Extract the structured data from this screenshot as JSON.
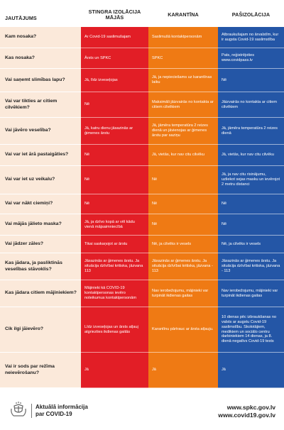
{
  "headers": {
    "q": "JAUTĀJUMS",
    "c1": "STINGRA IZOLĀCIJA MĀJĀS",
    "c2": "KARANTĪNA",
    "c3": "PAŠIZOLĀCIJA"
  },
  "rows": [
    {
      "q": "Kam nosaka?",
      "r": "Ar Covid-19 saslimušajam",
      "o": "Saslimušā kontaktpersonām",
      "b": "Atbraukušajam no ārvalstīm, kur ir augsta Covid-19 saslimstība"
    },
    {
      "q": "Kas nosaka?",
      "r": "Ārsts un SPKC",
      "o": "SPKC",
      "b": "Pats, reģistrējoties www.covidpass.lv"
    },
    {
      "q": "Vai saņemt slimības lapu?",
      "r": "Jā, līdz izveseļojas",
      "o": "Jā, ja nepieciešams uz karantīnas laiku",
      "b": "Nē"
    },
    {
      "q": "Vai var tikties ar citiem cilvēkiem?",
      "r": "Nē",
      "o": "Maksimāli jāizvairās no kontakta ar citiem cilvēkiem",
      "b": "Jāizvairās no kontakta ar citiem cilvēkiem"
    },
    {
      "q": "Vai jāvēro veselība?",
      "r": "Jā, katru dienu jāsazinās ar ģimenes ārstu",
      "o": "Jā, jāmēra temperatūra 2 reizes dienā un jāvienojas ar ģimenes ārstu par saziņu",
      "b": "Jā, jāmēra temperatūra 2 reizes dienā"
    },
    {
      "q": "Vai var iet ārā pastaigāties?",
      "r": "Nē",
      "o": "Jā, vietās, kur nav citu cilvēku",
      "b": "Jā, vietās, kur nav citu cilvēku"
    },
    {
      "q": "Vai var iet uz veikalu?",
      "r": "Nē",
      "o": "Nē",
      "b": "Jā, ja nav citu risinājumu, uzliekot sejas masku un ievērojot 2 metru distanci"
    },
    {
      "q": "Vai var nākt ciemiņi?",
      "r": "Nē",
      "o": "Nē",
      "b": "Nē"
    },
    {
      "q": "Vai mājās jālieto maska?",
      "r": "Jā, ja dzīvo kopā ar vēl kādu vienā mājsaimniecībā",
      "o": "Nē",
      "b": "Nē"
    },
    {
      "q": "Vai jādzer zāles?",
      "r": "Tikai saskaņojot ar ārstu",
      "o": "Nē, ja cilvēks ir vesels",
      "b": "Nē, ja cilvēks ir vesels"
    },
    {
      "q": "Kas jādara, ja pasliktinās veselības stāvoklis?",
      "r": "Jāsazinās ar ģimenes ārstu. Ja situācija dzīvībai kritiska, jāzvana 113",
      "o": "Jāsazinās ar ģimenes ārstu. Ja situācija dzīvībai kritiska, jāzvana - 113",
      "b": "Jāsazinās ar ģimenes ārstu. Ja situācija dzīvībai kritiska, jāzvana - 113"
    },
    {
      "q": "Kas jādara citiem mājiniekiem?",
      "r": "Mājinieki kā COVID-19 kontaktpersonas ievēro noteikumus kontaktpersonām",
      "o": "Nav ierobežojumu, mājinieki var turpināt ikdienas gaitas",
      "b": "Nav ierobežojumu, mājinieki var turpināt ikdienas gaitas"
    },
    {
      "q": "Cik ilgi jāievēro?",
      "r": "Līdz izveseļojas un ārsts atļauj atgriezties ikdienas gaitās",
      "o": "Karantīnu pārtrauc ar ārsta atļauju.",
      "b": "10 dienas pēc izbraukšanas no valsts ar augstu Covid-19 saslimstību. Skolotājiem, medikiem un sociālo centru darbiniekiem 14 dienas, ja 8. dienā negatīvs Covid-19 tests"
    },
    {
      "q": "Vai ir sods par režīma neievērošanu?",
      "r": "Jā",
      "o": "Jā",
      "b": "Jā"
    }
  ],
  "footer": {
    "line1": "Aktuālā informācija",
    "line2": "par COVID-19",
    "link1": "www.spkc.gov.lv",
    "link2": "www.covid19.gov.lv"
  },
  "colors": {
    "red": "#e21e26",
    "orange": "#ef7a14",
    "blue": "#2456a6",
    "question_bg": "#fbe9da"
  },
  "icons": {
    "logo": "latvia-coat-of-arms"
  }
}
